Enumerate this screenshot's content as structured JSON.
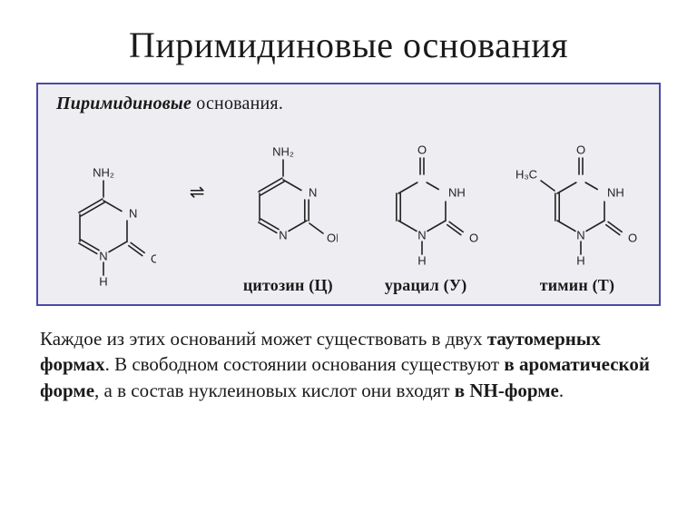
{
  "title": "Пиримидиновые основания",
  "figure": {
    "heading_bold": "Пиримидиновые",
    "heading_rest": " основания.",
    "eq_symbol": "⇌",
    "labels": {
      "cytosine": "цитозин (Ц)",
      "uracil": "урацил (У)",
      "thymine": "тимин (Т)"
    },
    "atoms": {
      "NH2": "NH₂",
      "N": "N",
      "NH_side": "NH",
      "O": "O",
      "OH": "OH",
      "H": "H",
      "H3C": "H₃C"
    },
    "style": {
      "border_color": "#4a4aa8",
      "bg_color": "#eeeef2",
      "mol_line_color": "#222222",
      "mol_line_width": 1.6,
      "atom_font_size": 13,
      "atom_font_family": "Arial, sans-serif"
    }
  },
  "paragraph": {
    "p1": "Каждое из этих оснований может существовать в двух ",
    "b1": "таутомерных формах",
    "p2": ". В свободном состоянии основания существуют ",
    "b2": "в ароматической форме",
    "p3": ", а в состав нуклеиновых кислот они входят ",
    "b3": "в NH-форме",
    "p4": "."
  }
}
